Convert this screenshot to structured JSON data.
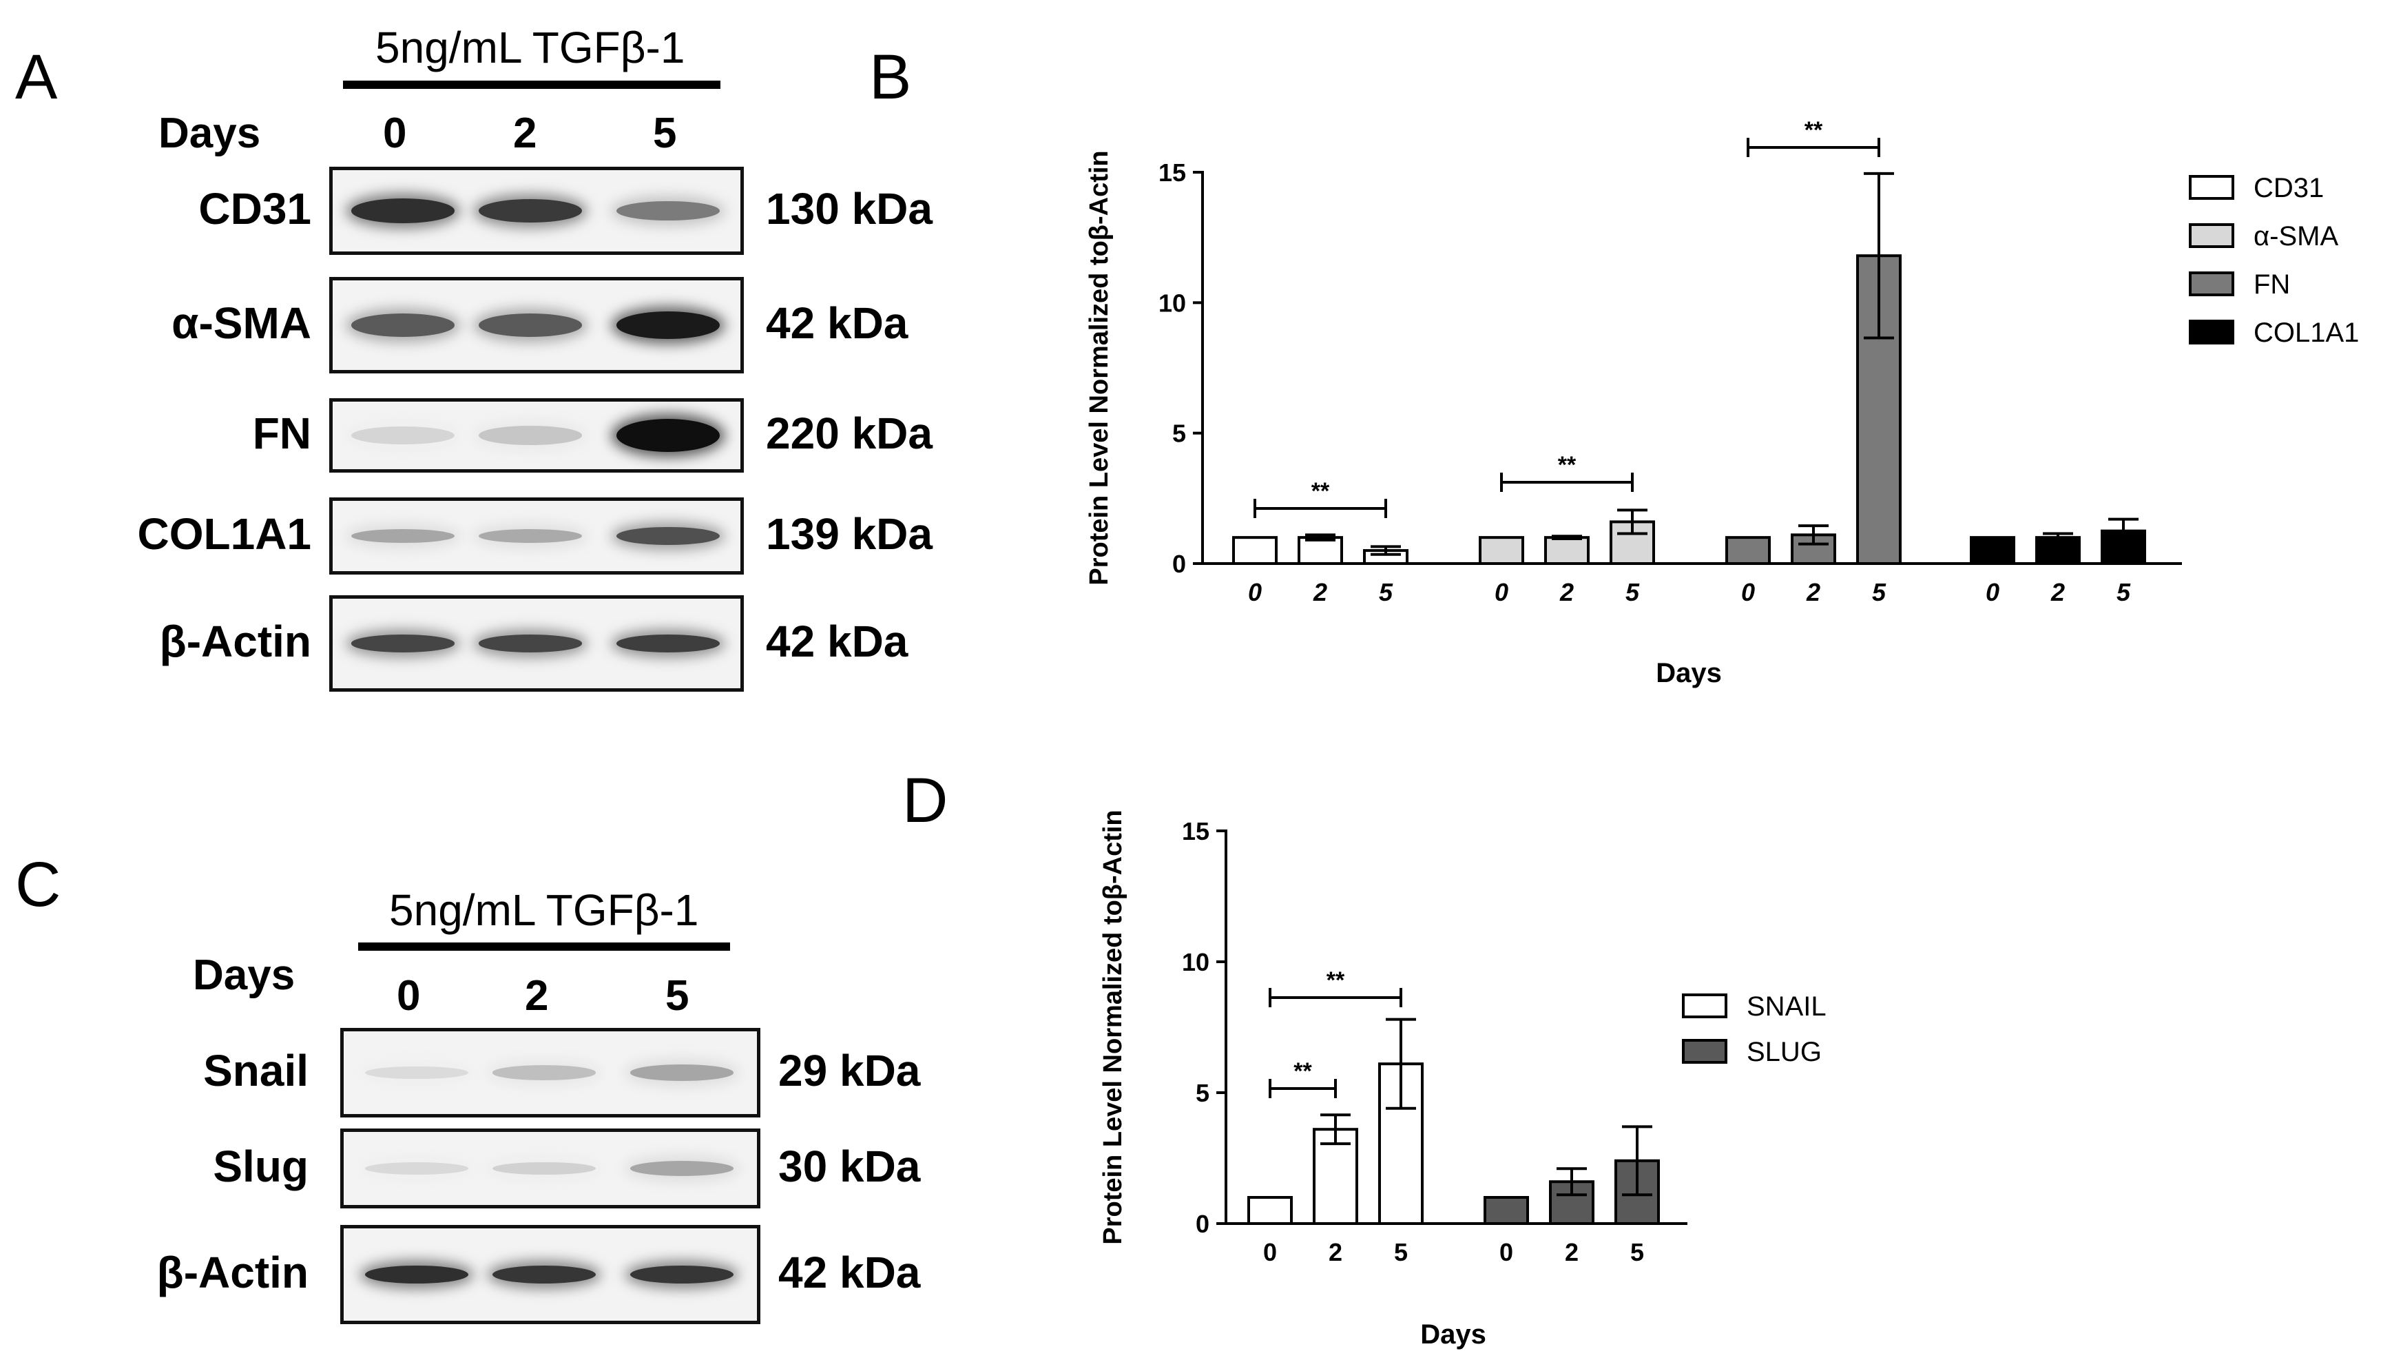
{
  "panels": {
    "A": "A",
    "B": "B",
    "C": "C",
    "D": "D"
  },
  "blot_A": {
    "treatment": "5ng/mL TGFβ-1",
    "days_label": "Days",
    "days": [
      "0",
      "2",
      "5"
    ],
    "rows": [
      {
        "label": "CD31",
        "kda": "130 kDa",
        "intensities": [
          0.85,
          0.8,
          0.5
        ]
      },
      {
        "label": "α-SMA",
        "kda": "42 kDa",
        "intensities": [
          0.65,
          0.65,
          0.95
        ]
      },
      {
        "label": "FN",
        "kda": "220 kDa",
        "intensities": [
          0.08,
          0.15,
          1.0
        ]
      },
      {
        "label": "COL1A1",
        "kda": "139 kDa",
        "intensities": [
          0.3,
          0.28,
          0.7
        ]
      },
      {
        "label": "β-Actin",
        "kda": "42 kDa",
        "intensities": [
          0.75,
          0.75,
          0.78
        ]
      }
    ]
  },
  "blot_C": {
    "treatment": "5ng/mL TGFβ-1",
    "days_label": "Days",
    "days": [
      "0",
      "2",
      "5"
    ],
    "rows": [
      {
        "label": "Snail",
        "kda": "29 kDa",
        "intensities": [
          0.05,
          0.18,
          0.3
        ]
      },
      {
        "label": "Slug",
        "kda": "30 kDa",
        "intensities": [
          0.06,
          0.1,
          0.3
        ]
      },
      {
        "label": "β-Actin",
        "kda": "42 kDa",
        "intensities": [
          0.85,
          0.82,
          0.82
        ]
      }
    ]
  },
  "colors": {
    "white": "#ffffff",
    "light_gray": "#d8d8d8",
    "mid_gray": "#7a7a7a",
    "dark_gray": "#595959",
    "black": "#000000"
  },
  "chart_data": [
    {
      "panel": "B",
      "type": "bar",
      "ylabel": "Protein Level Normalized toβ-Actin",
      "xlabel": "Days",
      "ylim": [
        0,
        15
      ],
      "yticks": [
        "0",
        "5",
        "10",
        "15"
      ],
      "categories": [
        "0",
        "2",
        "5"
      ],
      "series": [
        {
          "name": "CD31",
          "color": "#ffffff",
          "values": [
            1.0,
            1.0,
            0.5
          ],
          "errors": [
            0,
            0.1,
            0.15
          ]
        },
        {
          "name": "α-SMA",
          "color": "#d8d8d8",
          "values": [
            1.0,
            1.0,
            1.6
          ],
          "errors": [
            0,
            0.05,
            0.45
          ]
        },
        {
          "name": "FN",
          "color": "#7a7a7a",
          "values": [
            1.0,
            1.1,
            11.8
          ],
          "errors": [
            0,
            0.35,
            3.15
          ]
        },
        {
          "name": "COL1A1",
          "color": "#000000",
          "values": [
            1.0,
            1.0,
            1.25
          ],
          "errors": [
            0,
            0.15,
            0.45
          ]
        }
      ],
      "significance": [
        {
          "group": 0,
          "from": 0,
          "to": 2,
          "label": "**"
        },
        {
          "group": 1,
          "from": 0,
          "to": 2,
          "label": "**"
        },
        {
          "group": 2,
          "from": 0,
          "to": 2,
          "label": "**"
        }
      ],
      "legend": "right"
    },
    {
      "panel": "D",
      "type": "bar",
      "ylabel": "Protein Level Normalized toβ-Actin",
      "xlabel": "Days",
      "ylim": [
        0,
        15
      ],
      "yticks": [
        "0",
        "5",
        "10",
        "15"
      ],
      "categories": [
        "0",
        "2",
        "5"
      ],
      "series": [
        {
          "name": "SNAIL",
          "color": "#ffffff",
          "values": [
            1.0,
            3.6,
            6.1
          ],
          "errors": [
            0,
            0.55,
            1.7
          ]
        },
        {
          "name": "SLUG",
          "color": "#595959",
          "values": [
            1.0,
            1.6,
            2.4
          ],
          "errors": [
            0,
            0.5,
            1.3
          ]
        }
      ],
      "significance": [
        {
          "group": 0,
          "from": 0,
          "to": 1,
          "label": "**"
        },
        {
          "group": 0,
          "from": 0,
          "to": 2,
          "label": "**"
        }
      ],
      "legend": "right"
    }
  ]
}
